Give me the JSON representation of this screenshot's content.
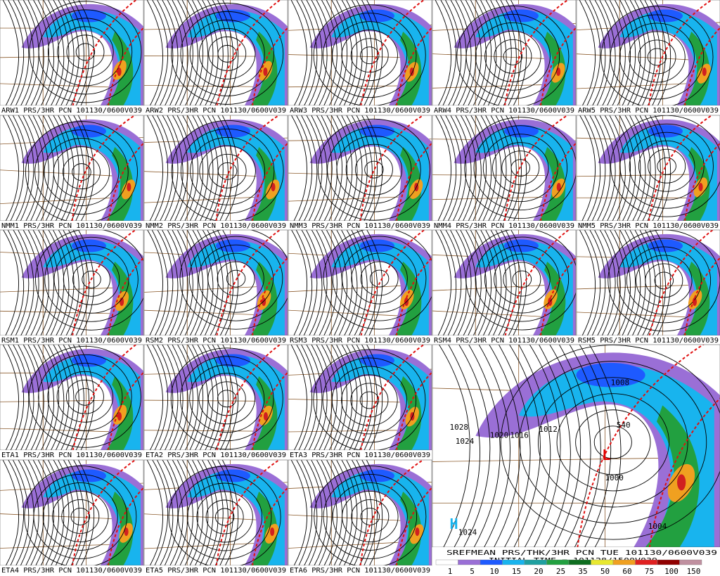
{
  "panels": [
    {
      "label": "ARW1 PRS/3HR PCN 101130/0600V039"
    },
    {
      "label": "ARW2 PRS/3HR PCN 101130/0600V039"
    },
    {
      "label": "ARW3 PRS/3HR PCN 101130/0600V039"
    },
    {
      "label": "ARW4 PRS/3HR PCN 101130/0600V039"
    },
    {
      "label": "ARW5 PRS/3HR PCN 101130/0600V039"
    },
    {
      "label": "NMM1 PRS/3HR PCN 101130/0600V039"
    },
    {
      "label": "NMM2 PRS/3HR PCN 101130/0600V039"
    },
    {
      "label": "NMM3 PRS/3HR PCN 101130/0600V039"
    },
    {
      "label": "NMM4 PRS/3HR PCN 101130/0600V039"
    },
    {
      "label": "NMM5 PRS/3HR PCN 101130/0600V039"
    },
    {
      "label": "RSM1 PRS/3HR PCN 101130/0600V039"
    },
    {
      "label": "RSM2 PRS/3HR PCN 101130/0600V039"
    },
    {
      "label": "RSM3 PRS/3HR PCN 101130/0600V039"
    },
    {
      "label": "RSM4 PRS/3HR PCN 101130/0600V039"
    },
    {
      "label": "RSM5 PRS/3HR PCN 101130/0600V039"
    },
    {
      "label": "ETA1 PRS/3HR PCN 101130/0600V039"
    },
    {
      "label": "ETA2 PRS/3HR PCN 101130/0600V039"
    },
    {
      "label": "ETA3 PRS/3HR PCN 101130/0600V039"
    },
    {
      "label": "ETA4 PRS/3HR PCN 101130/0600V039"
    },
    {
      "label": "ETA5 PRS/3HR PCN 101130/0600V039"
    },
    {
      "label": "ETA6 PRS/3HR PCN 101130/0600V039"
    }
  ],
  "mean_panel": {
    "title": "SREFMEAN PRS/THK/3HR PCN TUE 101130/0600V039",
    "subtitle": "INITIAL TIME = 101128/1500V039",
    "contour_labels": [
      "1008",
      "540",
      "1028",
      "1024",
      "1020",
      "1016",
      "1012",
      "L",
      "1000",
      "1004",
      "H",
      "1024"
    ]
  },
  "colorbar": {
    "labels": [
      1,
      5,
      10,
      15,
      20,
      25,
      35,
      50,
      60,
      75,
      100,
      150
    ]
  }
}
